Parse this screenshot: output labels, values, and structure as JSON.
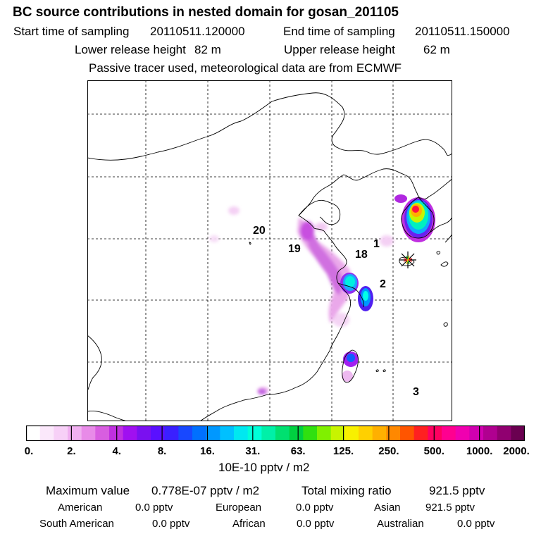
{
  "header": {
    "title": "BC  source contributions in nested domain for gosan_201105",
    "start_label": "Start time of sampling",
    "start_value": "20110511.120000",
    "end_label": "End time of sampling",
    "end_value": "20110511.150000",
    "lower_label": "Lower release height",
    "lower_value": "82 m",
    "upper_label": "Upper release height",
    "upper_value": "62 m",
    "tracer_note": "Passive tracer used, meteorological data are from ECMWF"
  },
  "map": {
    "region_labels": [
      {
        "id": "20",
        "text": "20"
      },
      {
        "id": "19",
        "text": "19"
      },
      {
        "id": "18",
        "text": "18"
      },
      {
        "id": "1",
        "text": "1"
      },
      {
        "id": "2",
        "text": "2"
      },
      {
        "id": "3",
        "text": "3"
      }
    ],
    "receptor_marker": "star"
  },
  "colorbar": {
    "ticks": [
      "0.",
      "2.",
      "4.",
      "8.",
      "16.",
      "31.",
      "63.",
      "125.",
      "250.",
      "500.",
      "1000.",
      "2000."
    ],
    "units": "10E-10 pptv / m2",
    "colors": [
      "#ffffff",
      "#fbe8fb",
      "#f7d0f7",
      "#f0b0f0",
      "#e88be8",
      "#d85ee0",
      "#c030e0",
      "#a010f0",
      "#7a10f0",
      "#5a10ff",
      "#3a20ff",
      "#1848ff",
      "#0070ff",
      "#0098ff",
      "#00c0ff",
      "#00e8f0",
      "#00ffd8",
      "#00f0a8",
      "#00e070",
      "#00d040",
      "#30e010",
      "#80f000",
      "#c8f400",
      "#f8f000",
      "#ffd000",
      "#ffb000",
      "#ff8800",
      "#ff5500",
      "#ff2020",
      "#ff0060",
      "#ff0090",
      "#f000b0",
      "#d000b0",
      "#b00090",
      "#900070",
      "#6a0050"
    ]
  },
  "stats": {
    "max_label": "Maximum value",
    "max_value": "0.778E-07 pptv / m2",
    "total_label": "Total mixing ratio",
    "total_value": "921.5 pptv",
    "sources": [
      {
        "name": "American",
        "value": "0.0 pptv"
      },
      {
        "name": "European",
        "value": "0.0 pptv"
      },
      {
        "name": "Asian",
        "value": "921.5 pptv"
      },
      {
        "name": "South American",
        "value": "0.0 pptv"
      },
      {
        "name": "African",
        "value": "0.0 pptv"
      },
      {
        "name": "Australian",
        "value": "0.0 pptv"
      }
    ]
  }
}
